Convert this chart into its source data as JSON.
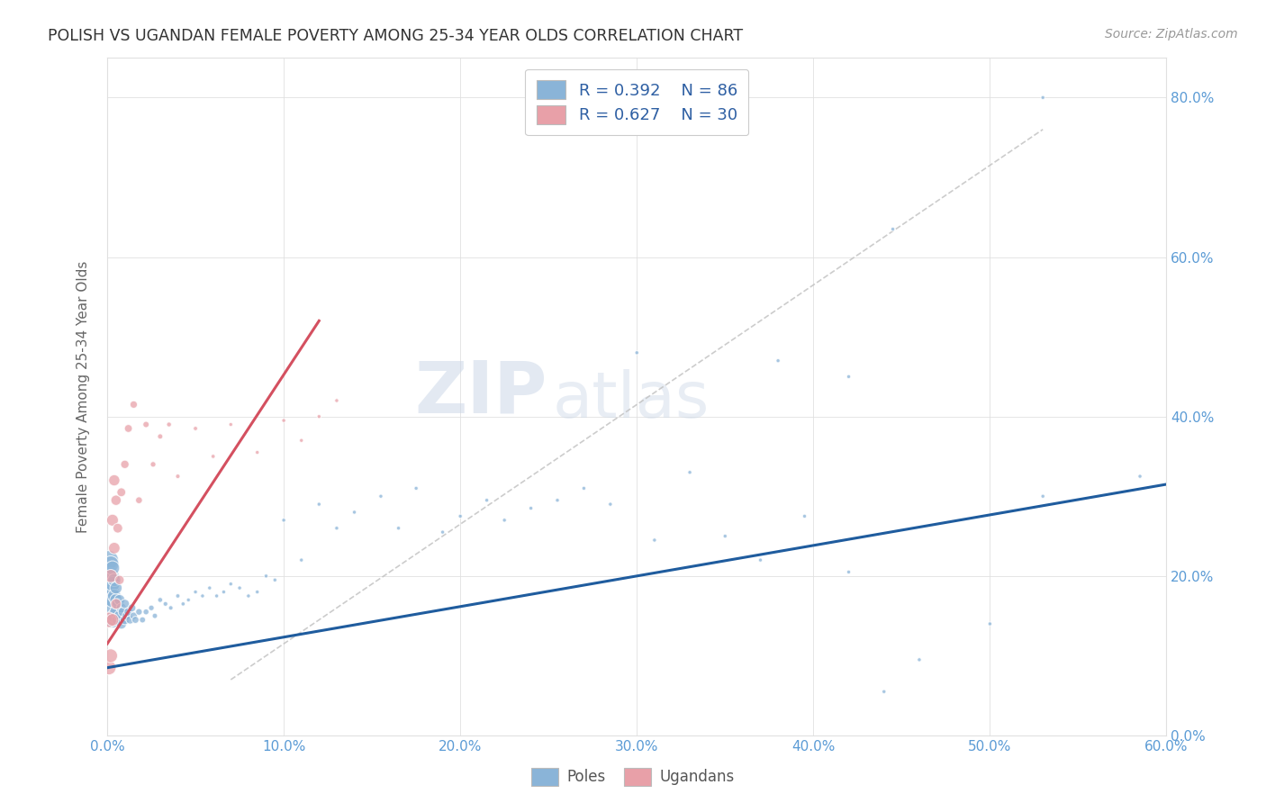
{
  "title": "POLISH VS UGANDAN FEMALE POVERTY AMONG 25-34 YEAR OLDS CORRELATION CHART",
  "source": "Source: ZipAtlas.com",
  "ylabel": "Female Poverty Among 25-34 Year Olds",
  "background_color": "#ffffff",
  "watermark_line1": "ZIP",
  "watermark_line2": "atlas",
  "poles_color": "#8ab4d8",
  "ugandans_color": "#e8a0a8",
  "poles_line_color": "#1f5c9e",
  "ugandans_line_color": "#d45060",
  "diag_line_color": "#c0c0c0",
  "tick_color": "#5b9bd5",
  "grid_color": "#e0e0e0",
  "xlim": [
    0.0,
    0.6
  ],
  "ylim": [
    0.0,
    0.85
  ],
  "x_ticks": [
    0.0,
    0.1,
    0.2,
    0.3,
    0.4,
    0.5,
    0.6
  ],
  "y_ticks": [
    0.0,
    0.2,
    0.4,
    0.6,
    0.8
  ],
  "poles_line_x": [
    0.0,
    0.6
  ],
  "poles_line_y": [
    0.085,
    0.315
  ],
  "ugandans_line_x": [
    0.0,
    0.12
  ],
  "ugandans_line_y": [
    0.115,
    0.52
  ],
  "diag_line_x": [
    0.07,
    0.53
  ],
  "diag_line_y": [
    0.07,
    0.76
  ],
  "poles_x": [
    0.001,
    0.001,
    0.001,
    0.002,
    0.002,
    0.002,
    0.002,
    0.003,
    0.003,
    0.003,
    0.003,
    0.004,
    0.004,
    0.004,
    0.005,
    0.005,
    0.005,
    0.006,
    0.006,
    0.007,
    0.007,
    0.008,
    0.008,
    0.009,
    0.01,
    0.01,
    0.011,
    0.012,
    0.013,
    0.014,
    0.015,
    0.016,
    0.018,
    0.02,
    0.022,
    0.025,
    0.027,
    0.03,
    0.033,
    0.036,
    0.04,
    0.043,
    0.046,
    0.05,
    0.054,
    0.058,
    0.062,
    0.066,
    0.07,
    0.075,
    0.08,
    0.085,
    0.09,
    0.095,
    0.1,
    0.11,
    0.12,
    0.13,
    0.14,
    0.155,
    0.165,
    0.175,
    0.19,
    0.2,
    0.215,
    0.225,
    0.24,
    0.255,
    0.27,
    0.285,
    0.31,
    0.33,
    0.35,
    0.37,
    0.395,
    0.42,
    0.44,
    0.46,
    0.5,
    0.53,
    0.38,
    0.42,
    0.3,
    0.445,
    0.53,
    0.585
  ],
  "poles_y": [
    0.195,
    0.175,
    0.22,
    0.16,
    0.185,
    0.2,
    0.215,
    0.145,
    0.17,
    0.19,
    0.21,
    0.15,
    0.175,
    0.195,
    0.155,
    0.17,
    0.185,
    0.145,
    0.165,
    0.15,
    0.17,
    0.14,
    0.16,
    0.155,
    0.145,
    0.165,
    0.15,
    0.155,
    0.145,
    0.16,
    0.15,
    0.145,
    0.155,
    0.145,
    0.155,
    0.16,
    0.15,
    0.17,
    0.165,
    0.16,
    0.175,
    0.165,
    0.17,
    0.18,
    0.175,
    0.185,
    0.175,
    0.18,
    0.19,
    0.185,
    0.175,
    0.18,
    0.2,
    0.195,
    0.27,
    0.22,
    0.29,
    0.26,
    0.28,
    0.3,
    0.26,
    0.31,
    0.255,
    0.275,
    0.295,
    0.27,
    0.285,
    0.295,
    0.31,
    0.29,
    0.245,
    0.33,
    0.25,
    0.22,
    0.275,
    0.205,
    0.055,
    0.095,
    0.14,
    0.3,
    0.47,
    0.45,
    0.48,
    0.635,
    0.8,
    0.325
  ],
  "poles_sizes": [
    280,
    250,
    230,
    220,
    200,
    185,
    170,
    165,
    150,
    140,
    130,
    125,
    115,
    110,
    105,
    100,
    95,
    90,
    85,
    80,
    75,
    70,
    65,
    62,
    58,
    55,
    52,
    48,
    44,
    40,
    36,
    32,
    28,
    24,
    22,
    20,
    18,
    16,
    14,
    13,
    12,
    11,
    10,
    10,
    10,
    10,
    10,
    10,
    10,
    10,
    10,
    10,
    10,
    10,
    10,
    10,
    10,
    10,
    10,
    10,
    10,
    10,
    10,
    10,
    10,
    10,
    10,
    10,
    10,
    10,
    10,
    10,
    10,
    10,
    10,
    10,
    10,
    10,
    10,
    10,
    10,
    10,
    10,
    10,
    10,
    10
  ],
  "ugandans_x": [
    0.001,
    0.001,
    0.002,
    0.002,
    0.003,
    0.003,
    0.004,
    0.004,
    0.005,
    0.005,
    0.006,
    0.007,
    0.008,
    0.01,
    0.012,
    0.015,
    0.018,
    0.022,
    0.026,
    0.03,
    0.035,
    0.04,
    0.05,
    0.06,
    0.07,
    0.085,
    0.1,
    0.11,
    0.12,
    0.13
  ],
  "ugandans_y": [
    0.145,
    0.085,
    0.1,
    0.2,
    0.145,
    0.27,
    0.235,
    0.32,
    0.165,
    0.295,
    0.26,
    0.195,
    0.305,
    0.34,
    0.385,
    0.415,
    0.295,
    0.39,
    0.34,
    0.375,
    0.39,
    0.325,
    0.385,
    0.35,
    0.39,
    0.355,
    0.395,
    0.37,
    0.4,
    0.42
  ],
  "ugandans_sizes": [
    150,
    130,
    120,
    110,
    100,
    90,
    85,
    80,
    72,
    68,
    60,
    55,
    50,
    45,
    40,
    35,
    30,
    25,
    20,
    18,
    15,
    13,
    12,
    11,
    10,
    10,
    10,
    10,
    10,
    10
  ]
}
